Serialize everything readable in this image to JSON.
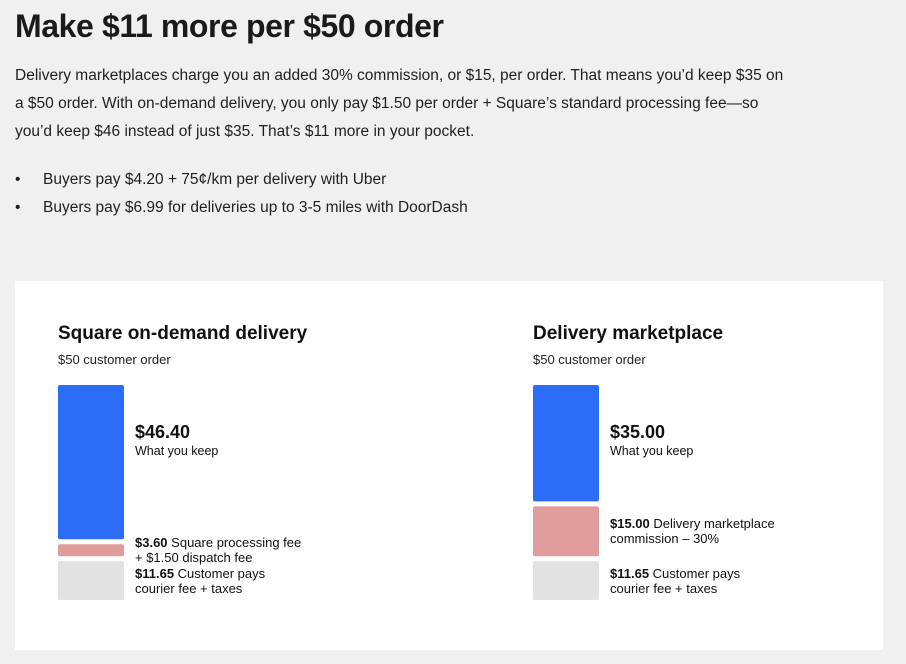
{
  "headline": "Make $11 more per $50 order",
  "intro": "Delivery marketplaces charge you an added 30% commission, or $15, per order. That means you’d keep $35 on a $50 order. With on-demand delivery, you only pay $1.50 per order + Square’s standard processing fee—so you’d keep $46 instead of just $35. That’s $11 more in your pocket.",
  "bullets": [
    "Buyers pay $4.20 + 75¢/km per delivery with Uber",
    "Buyers pay $6.99 for deliveries up to 3-5 miles with DoorDash"
  ],
  "colors": {
    "keep": "#2b6df6",
    "fee": "#e09b9c",
    "customer": "#e2e2e2"
  },
  "chart_data": [
    {
      "type": "bar",
      "title": "Square on-demand delivery",
      "subtitle": "$50 customer order",
      "segments": [
        {
          "amount_label": "$46.40",
          "description": "What you keep",
          "value": 46.4,
          "color": "keep",
          "style": "big"
        },
        {
          "amount_label": "$3.60",
          "description": "Square processing fee\n+ $1.50 dispatch fee",
          "value": 3.6,
          "color": "fee",
          "style": "small"
        },
        {
          "amount_label": "$11.65",
          "description": "Customer pays\ncourier fee + taxes",
          "value": 11.65,
          "color": "customer",
          "style": "small"
        }
      ]
    },
    {
      "type": "bar",
      "title": "Delivery marketplace",
      "subtitle": "$50 customer order",
      "segments": [
        {
          "amount_label": "$35.00",
          "description": "What you keep",
          "value": 35.0,
          "color": "keep",
          "style": "big"
        },
        {
          "amount_label": "$15.00",
          "description": "Delivery marketplace\ncommission – 30%",
          "value": 15.0,
          "color": "fee",
          "style": "small"
        },
        {
          "amount_label": "$11.65",
          "description": "Customer pays\ncourier fee + taxes",
          "value": 11.65,
          "color": "customer",
          "style": "small"
        }
      ]
    }
  ]
}
